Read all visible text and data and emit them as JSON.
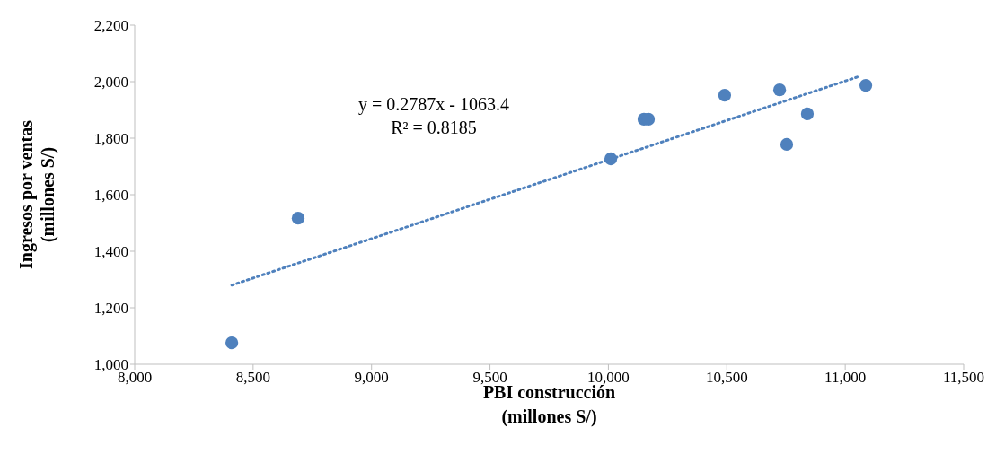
{
  "chart_data": {
    "type": "scatter",
    "xlabel": "PBI construcción\n(millones S/)",
    "ylabel": "Ingresos por ventas\n(millones S/)",
    "annotations": [
      "y = 0.2787x - 1063.4",
      "R² = 0.8185"
    ],
    "series": [
      {
        "type": "scatter",
        "color": "#4f81bd",
        "marker": "circle",
        "x": [
          8410,
          8690,
          10010,
          10150,
          10169,
          10491,
          10723,
          10753,
          10840,
          11087
        ],
        "values": [
          1076,
          1517,
          1727,
          1867,
          1867,
          1952,
          1971,
          1778,
          1886,
          1987
        ]
      },
      {
        "type": "line",
        "color": "#4f81bd",
        "marker": "none",
        "line_style": "dotted",
        "x": [
          8410,
          11060
        ],
        "values": [
          1280,
          2019
        ]
      }
    ],
    "xlim": [
      8000,
      11500
    ],
    "xticks": [
      {
        "value": 8000,
        "label": "8,000"
      },
      {
        "value": 8500,
        "label": "8,500"
      },
      {
        "value": 9000,
        "label": "9,000"
      },
      {
        "value": 9500,
        "label": "9,500"
      },
      {
        "value": 10000,
        "label": "10,000"
      },
      {
        "value": 10500,
        "label": "10,500"
      },
      {
        "value": 11000,
        "label": "11,000"
      },
      {
        "value": 11500,
        "label": "11,500"
      }
    ],
    "ylim": [
      1000,
      2200
    ],
    "yticks": [
      {
        "value": 1000,
        "label": "1,000"
      },
      {
        "value": 1200,
        "label": "1,200"
      },
      {
        "value": 1400,
        "label": "1,400"
      },
      {
        "value": 1600,
        "label": "1,600"
      },
      {
        "value": 1800,
        "label": "1,800"
      },
      {
        "value": 2000,
        "label": "2,000"
      },
      {
        "value": 2200,
        "label": "2,200"
      }
    ],
    "grid": false,
    "legend": false
  }
}
